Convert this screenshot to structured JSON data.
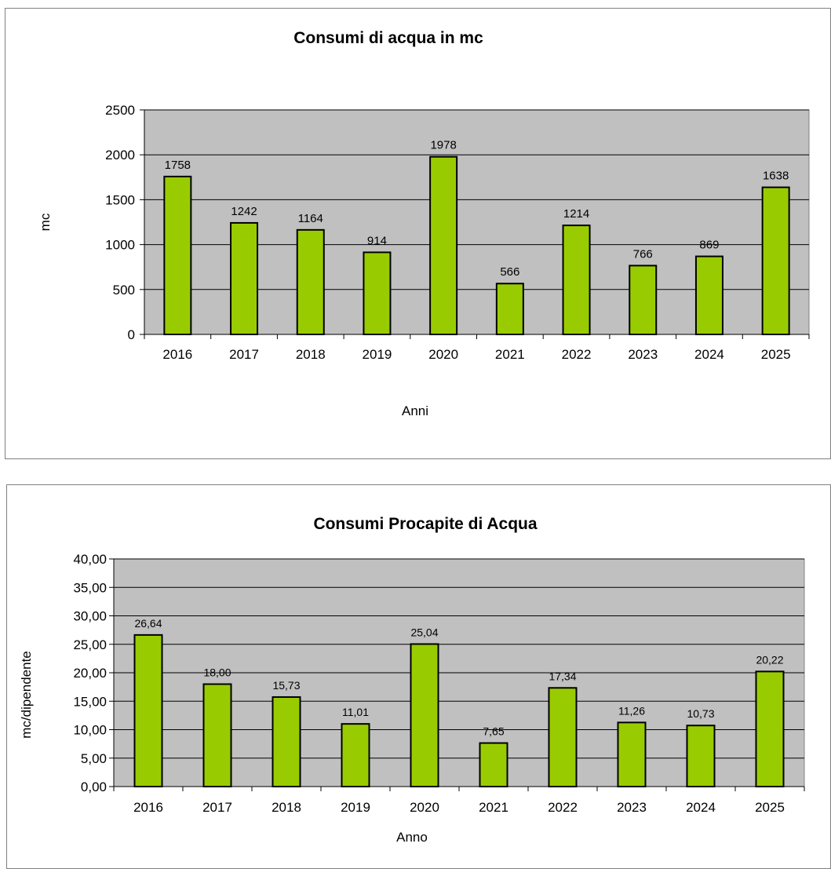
{
  "charts": [
    {
      "chart_data": {
        "type": "bar",
        "title": "Consumi di acqua in mc",
        "xlabel": "Anni",
        "ylabel": "mc",
        "categories": [
          "2016",
          "2017",
          "2018",
          "2019",
          "2020",
          "2021",
          "2022",
          "2023",
          "2024",
          "2025"
        ],
        "values": [
          1758,
          1242,
          1164,
          914,
          1978,
          566,
          1214,
          766,
          869,
          1638
        ],
        "value_labels": [
          "1758",
          "1242",
          "1164",
          "914",
          "1978",
          "566",
          "1214",
          "766",
          "869",
          "1638"
        ],
        "ylim": [
          0,
          2500
        ],
        "yticks": [
          0,
          500,
          1000,
          1500,
          2000,
          2500
        ],
        "ytick_labels": [
          "0",
          "500",
          "1000",
          "1500",
          "2000",
          "2500"
        ],
        "grid": true,
        "bar_color": "#99cc00",
        "plot_background": "#c0c0c0"
      }
    },
    {
      "chart_data": {
        "type": "bar",
        "title": "Consumi Procapite di Acqua",
        "xlabel": "Anno",
        "ylabel": "mc/dipendente",
        "categories": [
          "2016",
          "2017",
          "2018",
          "2019",
          "2020",
          "2021",
          "2022",
          "2023",
          "2024",
          "2025"
        ],
        "values": [
          26.64,
          18.0,
          15.73,
          11.01,
          25.04,
          7.65,
          17.34,
          11.26,
          10.73,
          20.22
        ],
        "value_labels": [
          "26,64",
          "18,00",
          "15,73",
          "11,01",
          "25,04",
          "7,65",
          "17,34",
          "11,26",
          "10,73",
          "20,22"
        ],
        "ylim": [
          0,
          40
        ],
        "yticks": [
          0,
          5,
          10,
          15,
          20,
          25,
          30,
          35,
          40
        ],
        "ytick_labels": [
          "0,00",
          "5,00",
          "10,00",
          "15,00",
          "20,00",
          "25,00",
          "30,00",
          "35,00",
          "40,00"
        ],
        "grid": true,
        "bar_color": "#99cc00",
        "plot_background": "#c0c0c0"
      }
    }
  ]
}
